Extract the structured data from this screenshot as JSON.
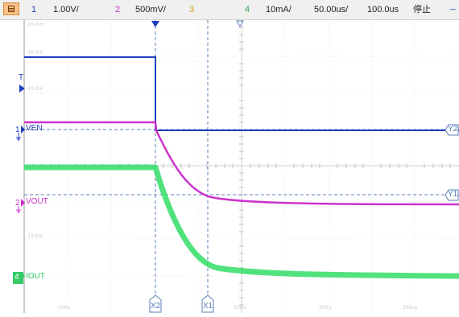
{
  "toolbar": {
    "ch1_num": "1",
    "ch1_scale": "1.00V/",
    "ch2_num": "2",
    "ch2_scale": "500mV/",
    "ch3_num": "3",
    "ch4_num": "4",
    "ch4_scale": "10mA/",
    "timebase": "50.00us/",
    "delay": "100.0us",
    "run_state": "停止",
    "menu_icon": "menu-icon"
  },
  "labels": {
    "ven": "VEN",
    "vout": "VOUT",
    "iout": "IOUT",
    "ch1_marker": "1",
    "ch2_marker": "2",
    "ch4_marker": "4",
    "trigger_marker": "T"
  },
  "cursors": {
    "x1": "X1",
    "x2": "X2",
    "y1": "Y1",
    "y2": "Y2"
  },
  "faint_labels": {
    "top": "20.0m",
    "upper": "20.0m",
    "mid": "20.0m",
    "lower": "10.0m",
    "t_neg100": "-100u",
    "t_100": "100u",
    "t_200": "200u",
    "t_300": "300us"
  },
  "colors": {
    "ch1": "#1f3fbf",
    "ch2": "#cc33cc",
    "ch3": "#d4a020",
    "ch4": "#33cc66",
    "cursor": "#5a7fb8"
  }
}
